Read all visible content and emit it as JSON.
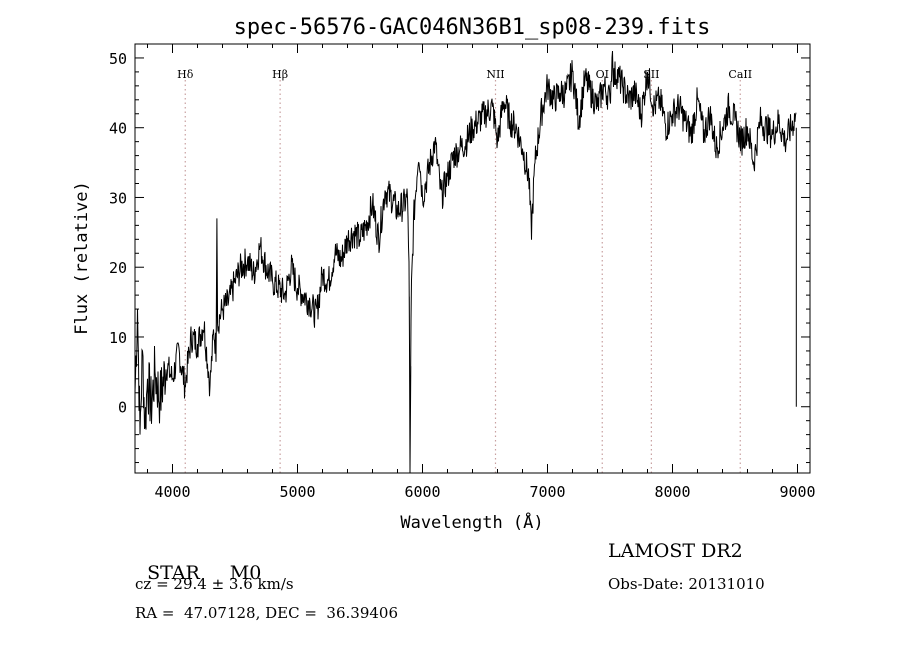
{
  "chart_data": {
    "type": "line",
    "title": "spec-56576-GAC046N36B1_sp08-239.fits",
    "xlabel": "Wavelength (Å)",
    "ylabel": "Flux (relative)",
    "xlim": [
      3700,
      9100
    ],
    "ylim": [
      -9.5,
      52
    ],
    "x_ticks": [
      4000,
      5000,
      6000,
      7000,
      8000,
      9000
    ],
    "y_ticks": [
      0,
      10,
      20,
      30,
      40,
      50
    ],
    "grid": false,
    "line_color": "#000000",
    "marker_color": "#c8a0a0",
    "lines": [
      {
        "name": "Hδ",
        "wavelength": 4102
      },
      {
        "name": "Hβ",
        "wavelength": 4861
      },
      {
        "name": "NII",
        "wavelength": 6584
      },
      {
        "name": "OI",
        "wavelength": 7438
      },
      {
        "name": "SII",
        "wavelength": 7831
      },
      {
        "name": "CaII",
        "wavelength": 8542
      }
    ],
    "series": [
      {
        "x": [
          3700,
          3720,
          3740,
          3760,
          3780,
          3800,
          3830,
          3860,
          3900,
          3950,
          4000,
          4050,
          4100,
          4150,
          4200,
          4250,
          4300,
          4330,
          4350,
          4355,
          4360,
          4400,
          4450,
          4500,
          4550,
          4600,
          4650,
          4700,
          4750,
          4800,
          4850,
          4900,
          4950,
          5000,
          5050,
          5100,
          5150,
          5200,
          5250,
          5300,
          5350,
          5400,
          5450,
          5500,
          5550,
          5600,
          5650,
          5700,
          5750,
          5800,
          5850,
          5880,
          5893,
          5900,
          5910,
          5930,
          5970,
          6000,
          6050,
          6100,
          6150,
          6200,
          6250,
          6300,
          6350,
          6400,
          6450,
          6500,
          6560,
          6600,
          6650,
          6700,
          6750,
          6800,
          6850,
          6870,
          6900,
          6950,
          7000,
          7050,
          7100,
          7150,
          7200,
          7250,
          7300,
          7350,
          7400,
          7450,
          7500,
          7520,
          7530,
          7550,
          7600,
          7650,
          7700,
          7750,
          7800,
          7850,
          7900,
          7950,
          8000,
          8050,
          8100,
          8150,
          8200,
          8250,
          8300,
          8350,
          8400,
          8450,
          8500,
          8550,
          8600,
          8650,
          8700,
          8750,
          8800,
          8850,
          8900,
          8950,
          8990
        ],
        "y": [
          2,
          14,
          -4,
          8,
          -3,
          4,
          0,
          5,
          1,
          6,
          4,
          8,
          3,
          10,
          9,
          12,
          3,
          11,
          8,
          27,
          12,
          14,
          15,
          18,
          20,
          21,
          19,
          23,
          20,
          18,
          17,
          16,
          20,
          17,
          16,
          15,
          13,
          19,
          18,
          22,
          21,
          24,
          25,
          24,
          26,
          29,
          24,
          31,
          30,
          28,
          29,
          30,
          20,
          -9.5,
          16,
          27,
          37,
          30,
          34,
          38,
          30,
          33,
          36,
          37,
          38,
          40,
          41,
          42,
          43,
          38,
          44,
          41,
          40,
          37,
          33,
          25,
          35,
          42,
          46,
          44,
          45,
          45,
          48,
          41,
          47,
          45,
          43,
          46,
          44,
          51,
          47,
          48,
          46,
          44,
          45,
          42,
          48,
          43,
          44,
          40,
          42,
          43,
          41,
          39,
          44,
          39,
          42,
          37,
          40,
          43,
          41,
          38,
          40,
          35,
          41,
          40,
          39,
          41,
          38,
          40,
          42
        ]
      }
    ],
    "info": {
      "object": "STAR",
      "subclass": "M0",
      "survey": "LAMOST DR2",
      "cz": "cz = 29.4 ± 3.6 km/s",
      "obs_date": "Obs-Date: 20131010",
      "coords": "RA =  47.07128, DEC =  36.39406"
    }
  }
}
